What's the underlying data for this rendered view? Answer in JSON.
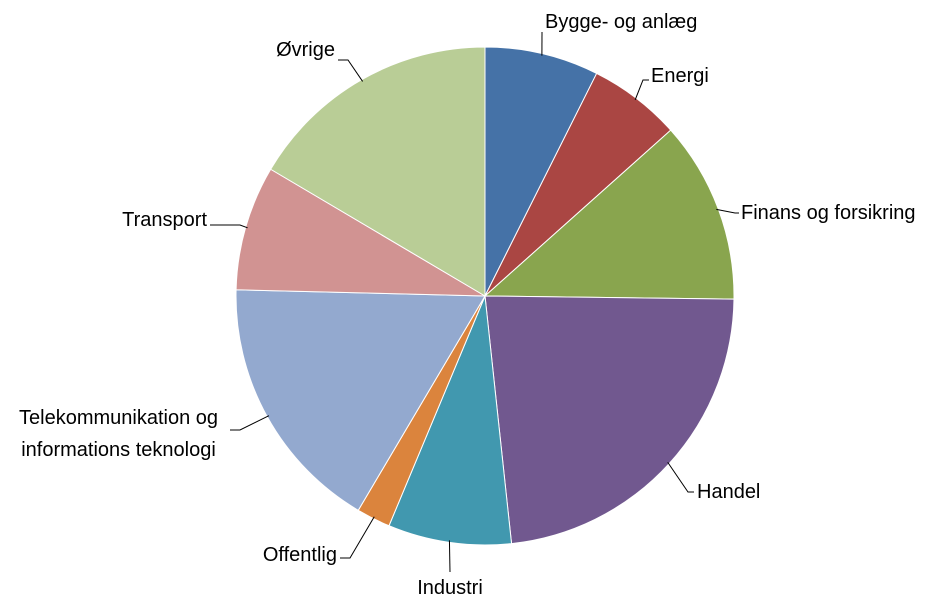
{
  "chart_data": {
    "type": "pie",
    "categories": [
      "Bygge- og anlæg",
      "Energi",
      "Finans og forsikring",
      "Handel",
      "Industri",
      "Offentlig",
      "Telekommunikation og informations teknologi",
      "Transport",
      "Øvrige"
    ],
    "values": [
      7.4,
      6.0,
      11.8,
      23.1,
      8.0,
      2.2,
      16.9,
      8.1,
      16.5
    ],
    "colors": [
      "#4572a7",
      "#aa4643",
      "#89a54e",
      "#71588f",
      "#4198af",
      "#db843d",
      "#93a9cf",
      "#d19392",
      "#b9cd96"
    ]
  }
}
